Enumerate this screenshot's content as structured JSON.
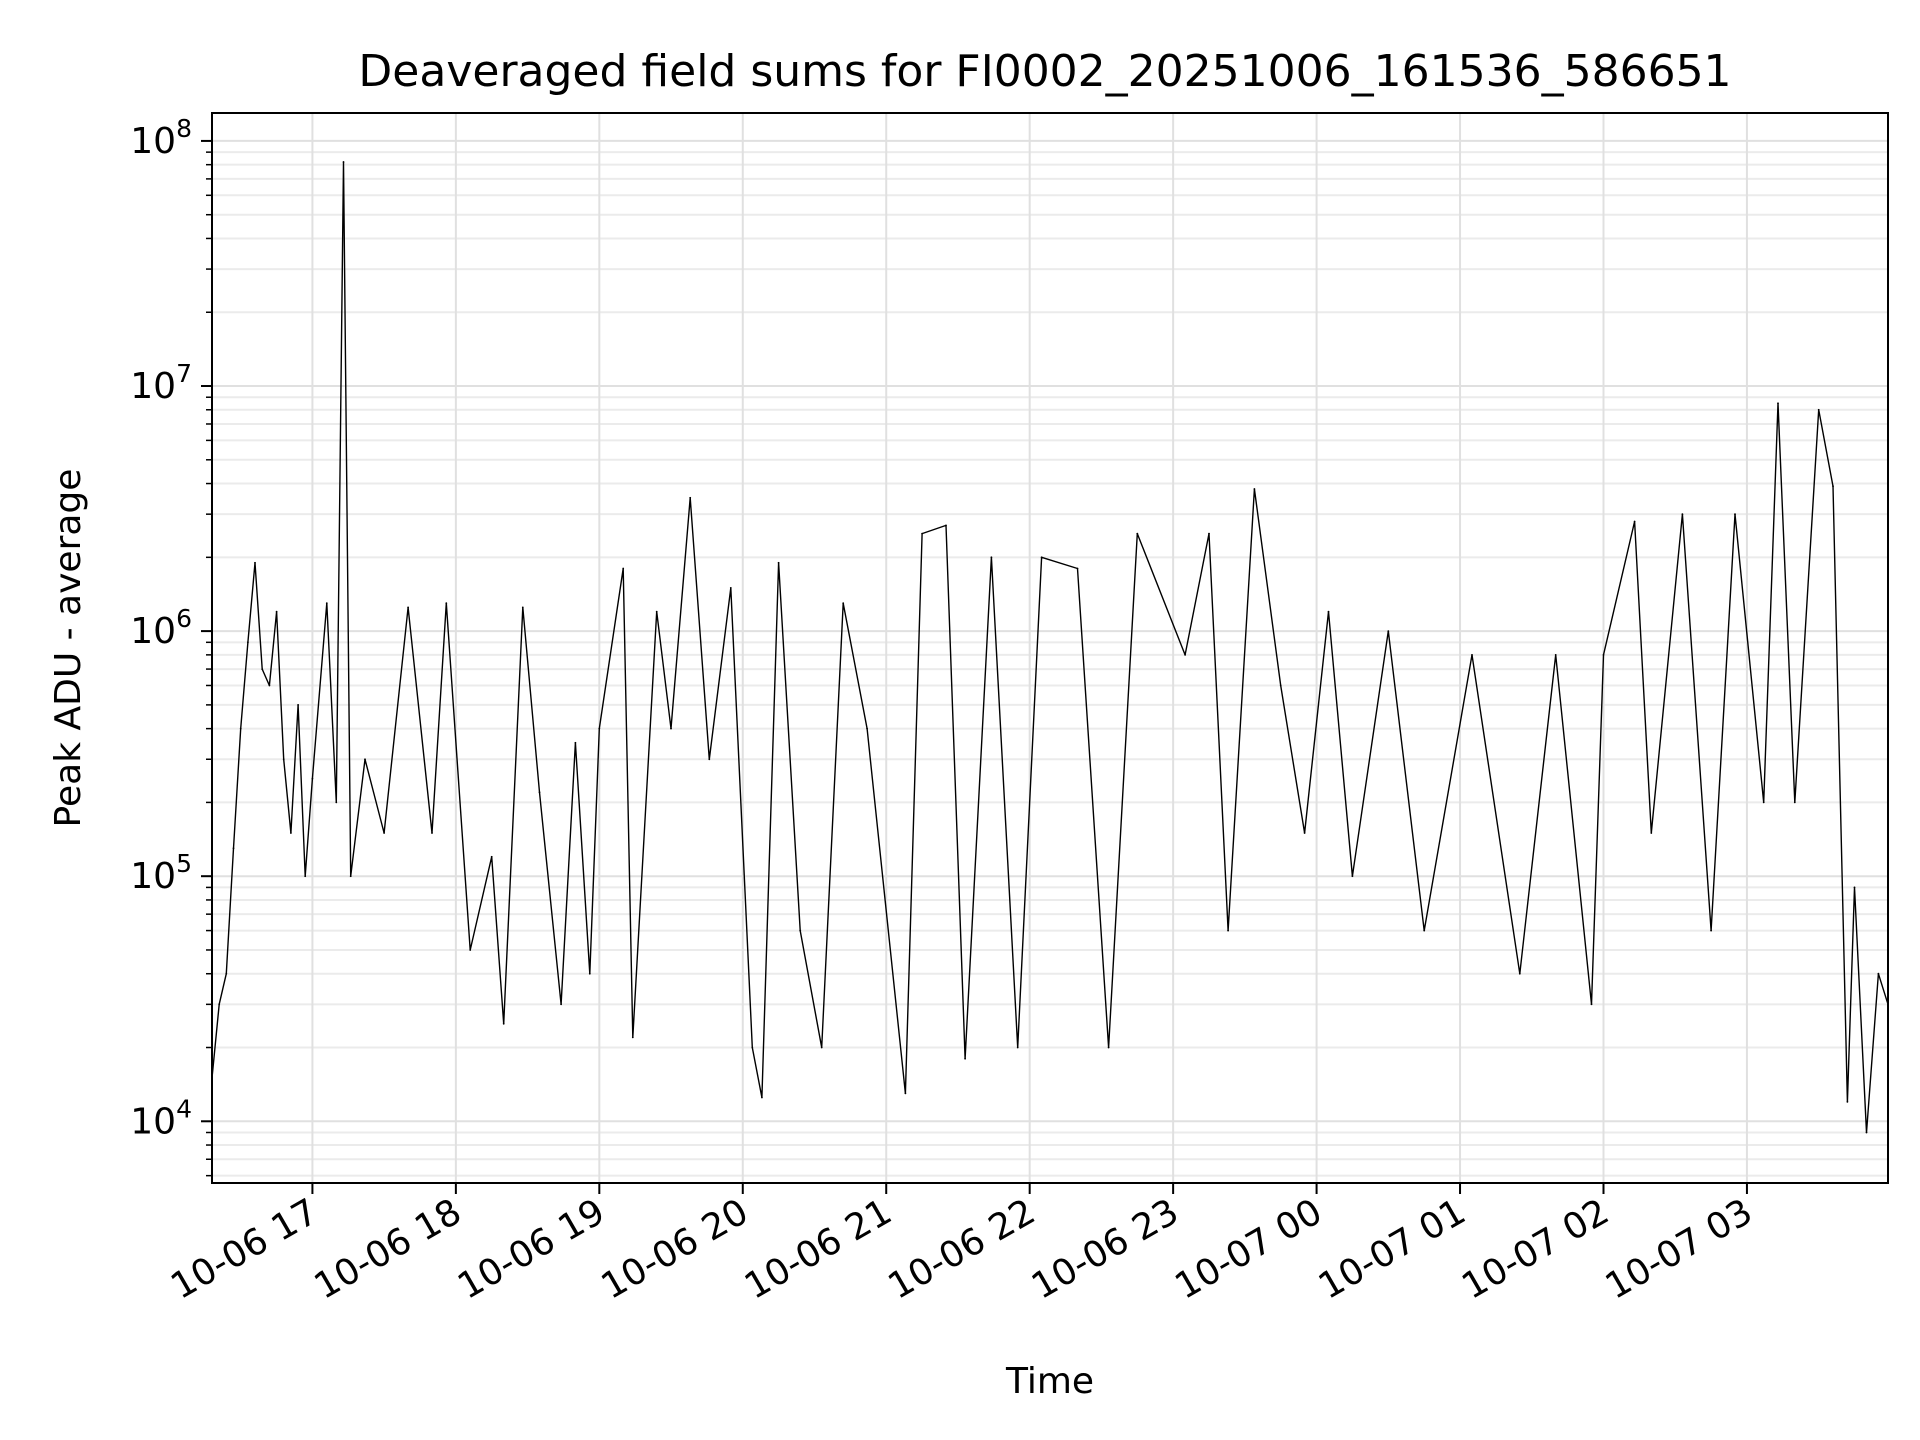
{
  "chart_data": {
    "type": "line",
    "title": "Deaveraged field sums for FI0002_20251006_161536_586651",
    "xlabel": "Time",
    "ylabel": "Peak ADU - average",
    "yscale": "log",
    "ylim": [
      5600,
      130000000
    ],
    "xlim": [
      "2025-10-06 16:18",
      "2025-10-07 03:59"
    ],
    "grid": true,
    "line_color": "#000000",
    "x_ticks": [
      {
        "value": "2025-10-06 17:00",
        "label": "10-06 17"
      },
      {
        "value": "2025-10-06 18:00",
        "label": "10-06 18"
      },
      {
        "value": "2025-10-06 19:00",
        "label": "10-06 19"
      },
      {
        "value": "2025-10-06 20:00",
        "label": "10-06 20"
      },
      {
        "value": "2025-10-06 21:00",
        "label": "10-06 21"
      },
      {
        "value": "2025-10-06 22:00",
        "label": "10-06 22"
      },
      {
        "value": "2025-10-06 23:00",
        "label": "10-06 23"
      },
      {
        "value": "2025-10-07 00:00",
        "label": "10-07 00"
      },
      {
        "value": "2025-10-07 01:00",
        "label": "10-07 01"
      },
      {
        "value": "2025-10-07 02:00",
        "label": "10-07 02"
      },
      {
        "value": "2025-10-07 03:00",
        "label": "10-07 03"
      }
    ],
    "y_ticks": [
      {
        "value": 10000,
        "base": "10",
        "exp": "4"
      },
      {
        "value": 100000,
        "base": "10",
        "exp": "5"
      },
      {
        "value": 1000000,
        "base": "10",
        "exp": "6"
      },
      {
        "value": 10000000,
        "base": "10",
        "exp": "7"
      },
      {
        "value": 100000000,
        "base": "10",
        "exp": "8"
      }
    ],
    "series": [
      {
        "values": [
          [
            "2025-10-06 16:18",
            15000
          ],
          [
            "2025-10-06 16:21",
            30000
          ],
          [
            "2025-10-06 16:24",
            40000
          ],
          [
            "2025-10-06 16:27",
            130000
          ],
          [
            "2025-10-06 16:30",
            400000
          ],
          [
            "2025-10-06 16:33",
            900000
          ],
          [
            "2025-10-06 16:36",
            1900000
          ],
          [
            "2025-10-06 16:39",
            700000
          ],
          [
            "2025-10-06 16:42",
            600000
          ],
          [
            "2025-10-06 16:45",
            1200000
          ],
          [
            "2025-10-06 16:48",
            300000
          ],
          [
            "2025-10-06 16:51",
            150000
          ],
          [
            "2025-10-06 16:54",
            500000
          ],
          [
            "2025-10-06 16:57",
            100000
          ],
          [
            "2025-10-06 17:00",
            250000
          ],
          [
            "2025-10-06 17:06",
            1300000
          ],
          [
            "2025-10-06 17:10",
            200000
          ],
          [
            "2025-10-06 17:13",
            82000000
          ],
          [
            "2025-10-06 17:16",
            100000
          ],
          [
            "2025-10-06 17:22",
            300000
          ],
          [
            "2025-10-06 17:30",
            150000
          ],
          [
            "2025-10-06 17:40",
            1250000
          ],
          [
            "2025-10-06 17:50",
            150000
          ],
          [
            "2025-10-06 17:56",
            1300000
          ],
          [
            "2025-10-06 18:06",
            50000
          ],
          [
            "2025-10-06 18:15",
            120000
          ],
          [
            "2025-10-06 18:20",
            25000
          ],
          [
            "2025-10-06 18:28",
            1250000
          ],
          [
            "2025-10-06 18:35",
            220000
          ],
          [
            "2025-10-06 18:44",
            30000
          ],
          [
            "2025-10-06 18:50",
            350000
          ],
          [
            "2025-10-06 18:56",
            40000
          ],
          [
            "2025-10-06 19:00",
            400000
          ],
          [
            "2025-10-06 19:10",
            1800000
          ],
          [
            "2025-10-06 19:14",
            22000
          ],
          [
            "2025-10-06 19:24",
            1200000
          ],
          [
            "2025-10-06 19:30",
            400000
          ],
          [
            "2025-10-06 19:38",
            3500000
          ],
          [
            "2025-10-06 19:46",
            300000
          ],
          [
            "2025-10-06 19:55",
            1500000
          ],
          [
            "2025-10-06 20:04",
            20000
          ],
          [
            "2025-10-06 20:08",
            12500
          ],
          [
            "2025-10-06 20:15",
            1900000
          ],
          [
            "2025-10-06 20:24",
            60000
          ],
          [
            "2025-10-06 20:33",
            20000
          ],
          [
            "2025-10-06 20:42",
            1300000
          ],
          [
            "2025-10-06 20:52",
            400000
          ],
          [
            "2025-10-06 21:08",
            13000
          ],
          [
            "2025-10-06 21:15",
            2500000
          ],
          [
            "2025-10-06 21:25",
            2700000
          ],
          [
            "2025-10-06 21:33",
            18000
          ],
          [
            "2025-10-06 21:44",
            2000000
          ],
          [
            "2025-10-06 21:55",
            20000
          ],
          [
            "2025-10-06 22:05",
            2000000
          ],
          [
            "2025-10-06 22:20",
            1800000
          ],
          [
            "2025-10-06 22:33",
            20000
          ],
          [
            "2025-10-06 22:45",
            2500000
          ],
          [
            "2025-10-06 23:05",
            800000
          ],
          [
            "2025-10-06 23:15",
            2500000
          ],
          [
            "2025-10-06 23:23",
            60000
          ],
          [
            "2025-10-06 23:34",
            3800000
          ],
          [
            "2025-10-06 23:45",
            600000
          ],
          [
            "2025-10-06 23:55",
            150000
          ],
          [
            "2025-10-07 00:05",
            1200000
          ],
          [
            "2025-10-07 00:15",
            100000
          ],
          [
            "2025-10-07 00:30",
            1000000
          ],
          [
            "2025-10-07 00:45",
            60000
          ],
          [
            "2025-10-07 01:05",
            800000
          ],
          [
            "2025-10-07 01:25",
            40000
          ],
          [
            "2025-10-07 01:40",
            800000
          ],
          [
            "2025-10-07 01:55",
            30000
          ],
          [
            "2025-10-07 02:00",
            800000
          ],
          [
            "2025-10-07 02:13",
            2800000
          ],
          [
            "2025-10-07 02:20",
            150000
          ],
          [
            "2025-10-07 02:33",
            3000000
          ],
          [
            "2025-10-07 02:45",
            60000
          ],
          [
            "2025-10-07 02:55",
            3000000
          ],
          [
            "2025-10-07 03:07",
            200000
          ],
          [
            "2025-10-07 03:13",
            8500000
          ],
          [
            "2025-10-07 03:20",
            200000
          ],
          [
            "2025-10-07 03:30",
            8000000
          ],
          [
            "2025-10-07 03:36",
            3900000
          ],
          [
            "2025-10-07 03:42",
            12000
          ],
          [
            "2025-10-07 03:45",
            90000
          ],
          [
            "2025-10-07 03:50",
            9000
          ],
          [
            "2025-10-07 03:55",
            40000
          ],
          [
            "2025-10-07 03:59",
            30000
          ]
        ]
      }
    ]
  }
}
